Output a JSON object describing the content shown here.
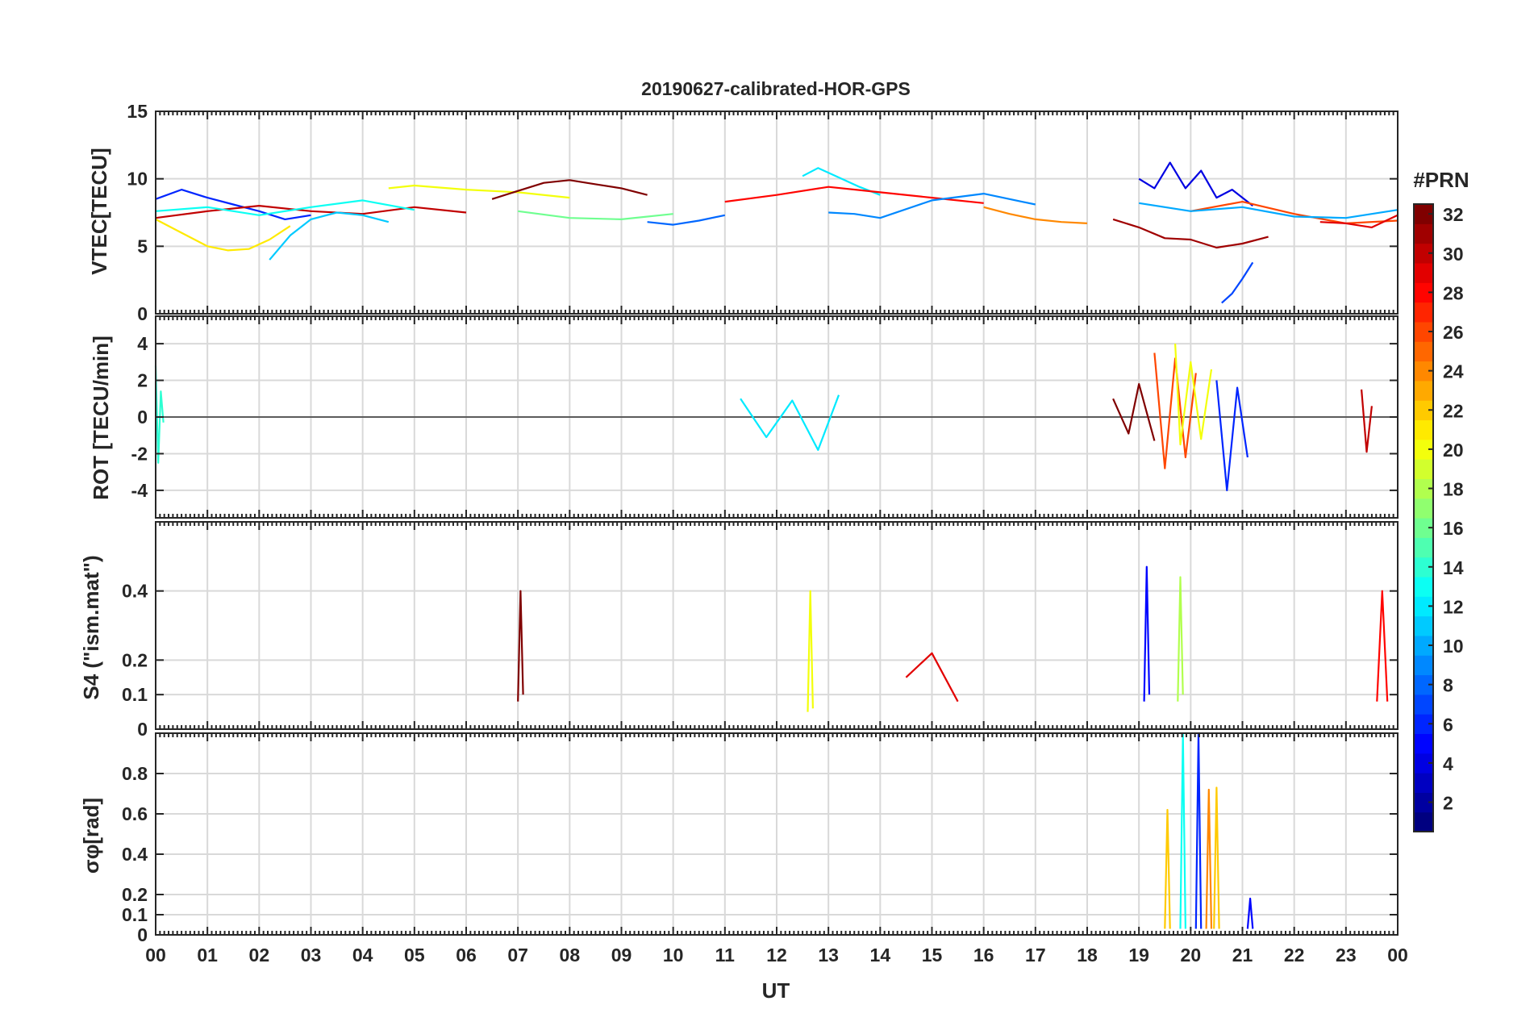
{
  "chart_data": {
    "type": "line",
    "title": "20190627-calibrated-HOR-GPS",
    "xlabel": "UT",
    "x_tick_labels": [
      "00",
      "01",
      "02",
      "03",
      "04",
      "05",
      "06",
      "07",
      "08",
      "09",
      "10",
      "11",
      "12",
      "13",
      "14",
      "15",
      "16",
      "17",
      "18",
      "19",
      "20",
      "21",
      "22",
      "23",
      "00"
    ],
    "x_range_hours": [
      0,
      24
    ],
    "grid": true,
    "colorbar": {
      "label": "#PRN",
      "range": [
        1,
        32
      ],
      "ticks": [
        2,
        4,
        6,
        8,
        10,
        12,
        14,
        16,
        18,
        20,
        22,
        24,
        26,
        28,
        30,
        32
      ],
      "tick_labels": [
        "2",
        "4",
        "6",
        "8",
        "10",
        "12",
        "14",
        "16",
        "18",
        "20",
        "22",
        "24",
        "26",
        "28",
        "30",
        "32"
      ],
      "colormap": "jet",
      "levels": 32
    },
    "panels": [
      {
        "id": "vtec",
        "ylabel": "VTEC[TECU]",
        "ylim": [
          0,
          15
        ],
        "y_ticks": [
          0,
          5,
          10,
          15
        ],
        "y_tick_labels": [
          "0",
          "5",
          "10",
          "15"
        ],
        "series": [
          {
            "prn": 6,
            "x": [
              0.0,
              0.5,
              1.0,
              1.5,
              2.0,
              2.5,
              3.0
            ],
            "y": [
              8.5,
              9.2,
              8.6,
              8.1,
              7.6,
              7.0,
              7.3
            ]
          },
          {
            "prn": 21,
            "x": [
              0.0,
              0.5,
              1.0,
              1.4,
              1.8,
              2.2,
              2.6
            ],
            "y": [
              7.0,
              6.0,
              5.0,
              4.7,
              4.8,
              5.5,
              6.5
            ]
          },
          {
            "prn": 30,
            "x": [
              0.0,
              1.0,
              2.0,
              3.0,
              4.0,
              5.0,
              6.0
            ],
            "y": [
              7.1,
              7.6,
              8.0,
              7.6,
              7.4,
              7.9,
              7.5
            ]
          },
          {
            "prn": 13,
            "x": [
              0.0,
              1.0,
              2.0,
              3.0,
              4.0,
              5.0
            ],
            "y": [
              7.6,
              7.9,
              7.3,
              7.9,
              8.4,
              7.7
            ]
          },
          {
            "prn": 11,
            "x": [
              2.2,
              2.6,
              3.0,
              3.5,
              4.0,
              4.5
            ],
            "y": [
              4.0,
              5.8,
              7.0,
              7.5,
              7.3,
              6.8
            ]
          },
          {
            "prn": 20,
            "x": [
              4.5,
              5.0,
              6.0,
              7.0,
              8.0
            ],
            "y": [
              9.3,
              9.5,
              9.2,
              9.0,
              8.6
            ]
          },
          {
            "prn": 32,
            "x": [
              6.5,
              7.0,
              7.5,
              8.0,
              8.5,
              9.0,
              9.5
            ],
            "y": [
              8.5,
              9.1,
              9.7,
              9.9,
              9.6,
              9.3,
              8.8
            ]
          },
          {
            "prn": 16,
            "x": [
              7.0,
              8.0,
              9.0,
              10.0
            ],
            "y": [
              7.6,
              7.1,
              7.0,
              7.4
            ]
          },
          {
            "prn": 8,
            "x": [
              9.5,
              10.0,
              10.5,
              11.0
            ],
            "y": [
              6.8,
              6.6,
              6.9,
              7.3
            ]
          },
          {
            "prn": 12,
            "x": [
              12.5,
              12.8,
              13.2,
              13.6,
              14.0
            ],
            "y": [
              10.2,
              10.8,
              10.1,
              9.4,
              8.8
            ]
          },
          {
            "prn": 28,
            "x": [
              11.0,
              12.0,
              13.0,
              14.0,
              15.0,
              16.0
            ],
            "y": [
              8.3,
              8.8,
              9.4,
              9.0,
              8.6,
              8.2
            ]
          },
          {
            "prn": 9,
            "x": [
              13.0,
              13.5,
              14.0,
              15.0,
              16.0,
              17.0
            ],
            "y": [
              7.5,
              7.4,
              7.1,
              8.4,
              8.9,
              8.1
            ]
          },
          {
            "prn": 24,
            "x": [
              16.0,
              16.5,
              17.0,
              17.5,
              18.0
            ],
            "y": [
              7.9,
              7.4,
              7.0,
              6.8,
              6.7
            ]
          },
          {
            "prn": 4,
            "x": [
              19.0,
              19.3,
              19.6,
              19.9,
              20.2,
              20.5,
              20.8,
              21.2
            ],
            "y": [
              10.0,
              9.3,
              11.2,
              9.3,
              10.6,
              8.6,
              9.2,
              8.0
            ]
          },
          {
            "prn": 31,
            "x": [
              18.5,
              19.0,
              19.5,
              20.0,
              20.5,
              21.0,
              21.5
            ],
            "y": [
              7.0,
              6.4,
              5.6,
              5.5,
              4.9,
              5.2,
              5.7
            ]
          },
          {
            "prn": 7,
            "x": [
              20.6,
              20.8,
              21.0,
              21.2
            ],
            "y": [
              0.8,
              1.5,
              2.6,
              3.8
            ]
          },
          {
            "prn": 26,
            "x": [
              20.0,
              21.0,
              22.0,
              23.0,
              24.0
            ],
            "y": [
              7.6,
              8.3,
              7.4,
              6.7,
              6.9
            ]
          },
          {
            "prn": 10,
            "x": [
              19.0,
              20.0,
              21.0,
              22.0,
              23.0,
              24.0
            ],
            "y": [
              8.2,
              7.6,
              7.9,
              7.2,
              7.1,
              7.7
            ]
          },
          {
            "prn": 29,
            "x": [
              22.5,
              23.0,
              23.5,
              24.0
            ],
            "y": [
              6.8,
              6.7,
              6.4,
              7.3
            ]
          }
        ]
      },
      {
        "id": "rot",
        "ylabel": "ROT [TECU/min]",
        "ylim": [
          -5.5,
          5.5
        ],
        "y_ticks": [
          -4,
          -2,
          0,
          2,
          4
        ],
        "y_tick_labels": [
          "-4",
          "-2",
          "0",
          "2",
          "4"
        ],
        "series": [
          {
            "prn": 14,
            "x": [
              0.0,
              0.05,
              0.1,
              0.15
            ],
            "y": [
              2.8,
              -2.5,
              1.4,
              -0.3
            ]
          },
          {
            "prn": 12,
            "x": [
              11.3,
              11.8,
              12.3,
              12.8,
              13.2
            ],
            "y": [
              1.0,
              -1.1,
              0.9,
              -1.8,
              1.2
            ]
          },
          {
            "prn": 32,
            "x": [
              18.5,
              18.8,
              19.0,
              19.3
            ],
            "y": [
              1.0,
              -0.9,
              1.8,
              -1.3
            ]
          },
          {
            "prn": 26,
            "x": [
              19.3,
              19.5,
              19.7,
              19.9,
              20.1
            ],
            "y": [
              3.5,
              -2.8,
              3.2,
              -2.2,
              2.4
            ]
          },
          {
            "prn": 20,
            "x": [
              19.7,
              19.8,
              20.0,
              20.2,
              20.4
            ],
            "y": [
              4.0,
              -1.5,
              3.0,
              -1.2,
              2.6
            ]
          },
          {
            "prn": 6,
            "x": [
              20.5,
              20.7,
              20.9,
              21.1
            ],
            "y": [
              2.0,
              -4.0,
              1.6,
              -2.2
            ]
          },
          {
            "prn": 30,
            "x": [
              23.3,
              23.4,
              23.5
            ],
            "y": [
              1.5,
              -1.9,
              0.6
            ]
          }
        ]
      },
      {
        "id": "s4",
        "ylabel": "S4 (\"ism.mat\")",
        "ylim": [
          0,
          0.6
        ],
        "y_ticks": [
          0,
          0.1,
          0.2,
          0.4
        ],
        "y_tick_labels": [
          "0",
          "0.1",
          "0.2",
          "0.4"
        ],
        "series": [
          {
            "prn": 32,
            "x": [
              7.0,
              7.05,
              7.1
            ],
            "y": [
              0.08,
              0.4,
              0.1
            ]
          },
          {
            "prn": 5,
            "x": [
              19.1,
              19.15,
              19.2
            ],
            "y": [
              0.08,
              0.47,
              0.1
            ]
          },
          {
            "prn": 18,
            "x": [
              19.75,
              19.8,
              19.85
            ],
            "y": [
              0.08,
              0.44,
              0.1
            ]
          },
          {
            "prn": 28,
            "x": [
              23.6,
              23.7,
              23.8
            ],
            "y": [
              0.08,
              0.4,
              0.08
            ]
          },
          {
            "prn": 20,
            "x": [
              12.6,
              12.65,
              12.7
            ],
            "y": [
              0.05,
              0.4,
              0.06
            ]
          },
          {
            "prn": 29,
            "x": [
              14.5,
              15.0,
              15.5
            ],
            "y": [
              0.15,
              0.22,
              0.08
            ]
          }
        ]
      },
      {
        "id": "sigma_phi",
        "ylabel": "σφ[rad]",
        "ylim": [
          0,
          1.0
        ],
        "y_ticks": [
          0,
          0.1,
          0.2,
          0.4,
          0.6,
          0.8
        ],
        "y_tick_labels": [
          "0",
          "0.1",
          "0.2",
          "0.4",
          "0.6",
          "0.8"
        ],
        "series": [
          {
            "prn": 22,
            "x": [
              19.5,
              19.55,
              19.6
            ],
            "y": [
              0.03,
              0.62,
              0.03
            ]
          },
          {
            "prn": 13,
            "x": [
              19.8,
              19.85,
              19.9
            ],
            "y": [
              0.03,
              1.0,
              0.03
            ]
          },
          {
            "prn": 24,
            "x": [
              20.3,
              20.35,
              20.4
            ],
            "y": [
              0.03,
              0.72,
              0.03
            ]
          },
          {
            "prn": 6,
            "x": [
              20.1,
              20.15,
              20.2
            ],
            "y": [
              0.03,
              1.0,
              0.03
            ]
          },
          {
            "prn": 22,
            "x": [
              20.45,
              20.5,
              20.55
            ],
            "y": [
              0.03,
              0.73,
              0.03
            ]
          },
          {
            "prn": 5,
            "x": [
              21.1,
              21.15,
              21.2
            ],
            "y": [
              0.03,
              0.18,
              0.03
            ]
          }
        ]
      }
    ]
  }
}
